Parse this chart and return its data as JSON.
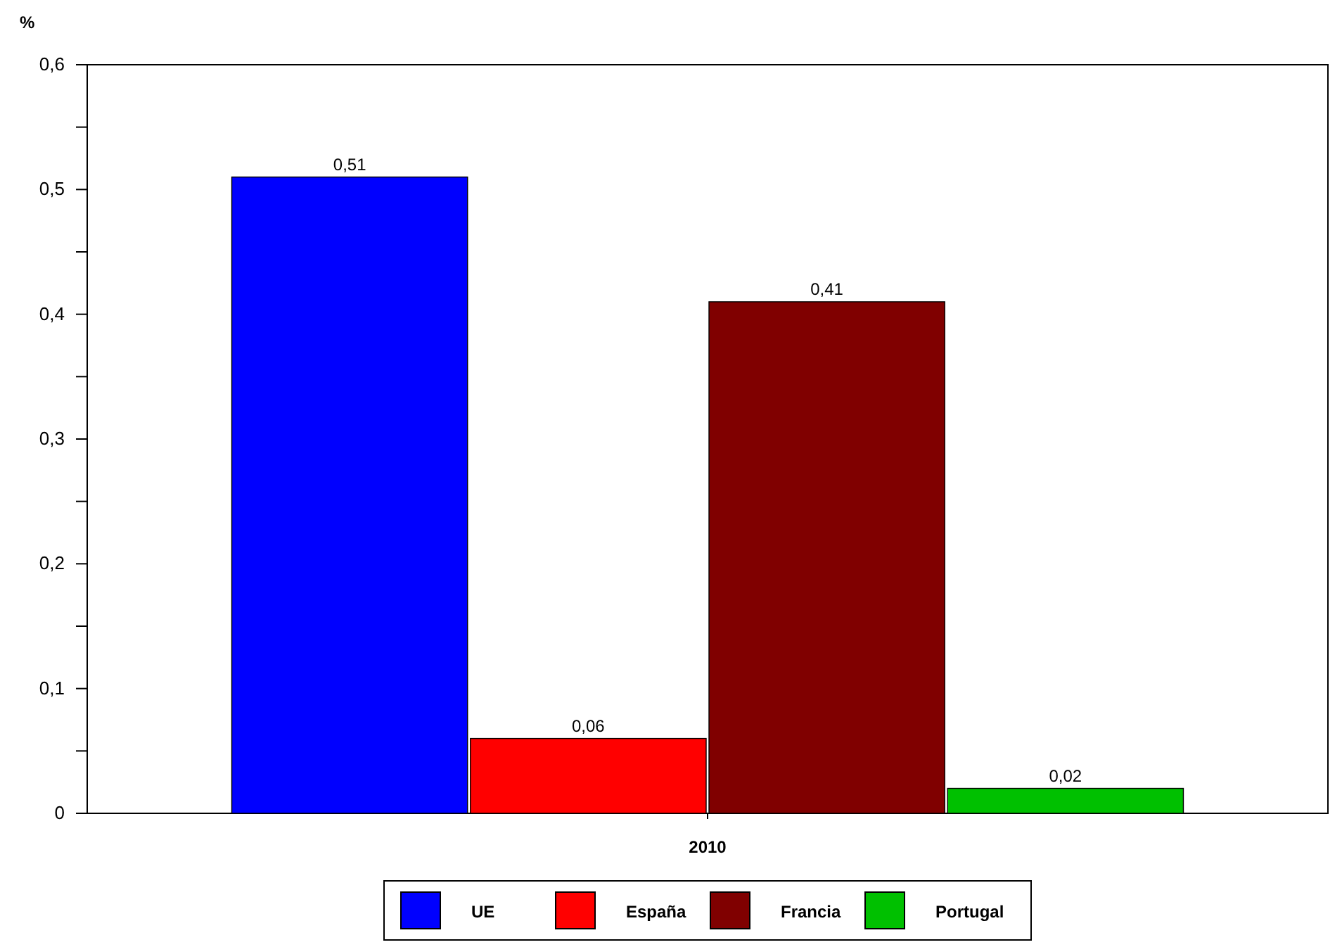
{
  "chart_data": {
    "type": "bar",
    "ylabel": "%",
    "xlabel": "2010",
    "categories": [
      null
    ],
    "series": [
      {
        "name": "UE",
        "color": "#0000ff",
        "values": [
          0.51
        ]
      },
      {
        "name": "España",
        "color": "#ff0000",
        "values": [
          0.06
        ]
      },
      {
        "name": "Francia",
        "color": "#800000",
        "values": [
          0.41
        ]
      },
      {
        "name": "Portugal",
        "color": "#00c000",
        "values": [
          0.02
        ]
      }
    ],
    "ylim": [
      0,
      0.6
    ],
    "yticks": [
      {
        "value": 0,
        "label": "0"
      },
      {
        "value": 0.05,
        "label": null
      },
      {
        "value": 0.1,
        "label": "0,1"
      },
      {
        "value": 0.15,
        "label": null
      },
      {
        "value": 0.2,
        "label": "0,2"
      },
      {
        "value": 0.25,
        "label": null
      },
      {
        "value": 0.3,
        "label": "0,3"
      },
      {
        "value": 0.35,
        "label": null
      },
      {
        "value": 0.4,
        "label": "0,4"
      },
      {
        "value": 0.45,
        "label": null
      },
      {
        "value": 0.5,
        "label": "0,5"
      },
      {
        "value": 0.55,
        "label": null
      },
      {
        "value": 0.6,
        "label": "0,6"
      }
    ],
    "value_labels": [
      "0,51",
      "0,06",
      "0,41",
      "0,02"
    ],
    "legend": "bottom",
    "grid": false
  }
}
